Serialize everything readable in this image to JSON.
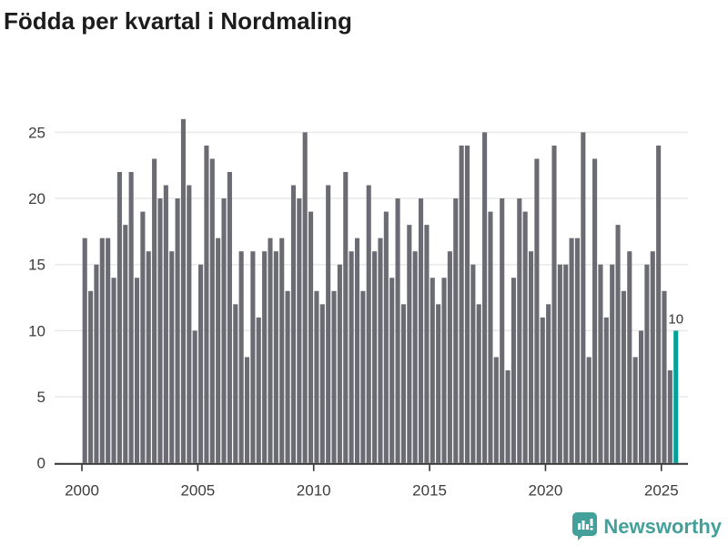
{
  "title": "Födda per kvartal i Nordmaling",
  "chart_data": {
    "type": "bar",
    "title": "Födda per kvartal i Nordmaling",
    "x_unit": "quarter",
    "x_start": "2000 Q1",
    "x_end": "2025 Q3",
    "x_tick_labels": [
      "2000",
      "2005",
      "2010",
      "2015",
      "2020",
      "2025"
    ],
    "y_ticks": [
      0,
      5,
      10,
      15,
      20,
      25
    ],
    "ylim": [
      0,
      26
    ],
    "grid": true,
    "values": [
      17,
      13,
      15,
      17,
      17,
      14,
      22,
      18,
      22,
      14,
      19,
      16,
      23,
      20,
      21,
      16,
      20,
      26,
      21,
      10,
      15,
      24,
      23,
      17,
      20,
      22,
      12,
      16,
      8,
      16,
      11,
      16,
      17,
      16,
      17,
      13,
      21,
      20,
      25,
      19,
      13,
      12,
      21,
      13,
      15,
      22,
      16,
      17,
      13,
      21,
      16,
      17,
      19,
      14,
      20,
      12,
      18,
      16,
      20,
      18,
      14,
      12,
      14,
      16,
      20,
      24,
      24,
      15,
      12,
      25,
      19,
      8,
      20,
      7,
      14,
      20,
      19,
      16,
      23,
      11,
      12,
      24,
      15,
      15,
      17,
      17,
      25,
      8,
      23,
      15,
      11,
      15,
      18,
      13,
      16,
      8,
      10,
      15,
      16,
      24,
      13,
      7,
      10
    ],
    "highlight_last": true,
    "last_value_label": "10",
    "bar_color": "#6b6b73",
    "highlight_color": "#06a098",
    "grid_color": "#e9e9e9",
    "axis_color": "#333333",
    "tick_label_color": "#3d3d3d"
  },
  "branding": {
    "logo_text": "Newsworthy",
    "logo_color": "#44a09b",
    "logo_icon": "bar-chart-bubble-icon"
  }
}
